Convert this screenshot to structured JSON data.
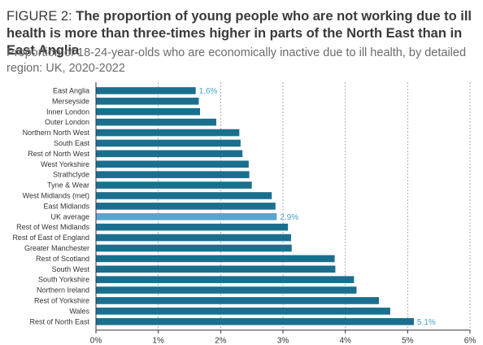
{
  "title": {
    "prefix": "FIGURE 2: ",
    "text": "The proportion of young people who are not working due to ill health is more than three-times higher in parts of the North East than in East Anglia"
  },
  "subtitle": "Proportion of 18-24-year-olds who are economically inactive due to ill health, by detailed region: UK, 2020-2022",
  "colors": {
    "bar": "#1b6f8e",
    "highlight": "#56a7cf",
    "label_highlight": "#4aa0c9",
    "gridline": "#9a9a9a",
    "axis": "#333333"
  },
  "chart_data": {
    "type": "bar",
    "orientation": "horizontal",
    "categories": [
      "East Anglia",
      "Merseyside",
      "Inner London",
      "Outer London",
      "Northern North West",
      "South East",
      "Rest of North West",
      "West Yorkshire",
      "Strathclyde",
      "Tyne & Wear",
      "West Midlands (met)",
      "East Midlands",
      "UK average",
      "Rest of West Midlands",
      "Rest of East of England",
      "Greater Manchester",
      "Rest of Scotland",
      "South West",
      "South Yorkshire",
      "Northern Ireland",
      "Rest of Yorkshire",
      "Wales",
      "Rest of North East"
    ],
    "values": [
      1.6,
      1.65,
      1.67,
      1.93,
      2.3,
      2.32,
      2.35,
      2.45,
      2.46,
      2.5,
      2.82,
      2.88,
      2.9,
      3.08,
      3.13,
      3.14,
      3.83,
      3.84,
      4.14,
      4.18,
      4.54,
      4.72,
      5.1
    ],
    "highlight_category": "UK average",
    "data_labels": [
      {
        "category": "East Anglia",
        "text": "1.6%"
      },
      {
        "category": "UK average",
        "text": "2.9%"
      },
      {
        "category": "Rest of North East",
        "text": "5.1%"
      }
    ],
    "xlim": [
      0,
      6
    ],
    "xticks": [
      0,
      1,
      2,
      3,
      4,
      5,
      6
    ],
    "xtick_labels": [
      "0%",
      "1%",
      "2%",
      "3%",
      "4%",
      "5%",
      "6%"
    ],
    "gridlines": "dashed vertical",
    "xlabel": "",
    "ylabel": ""
  }
}
